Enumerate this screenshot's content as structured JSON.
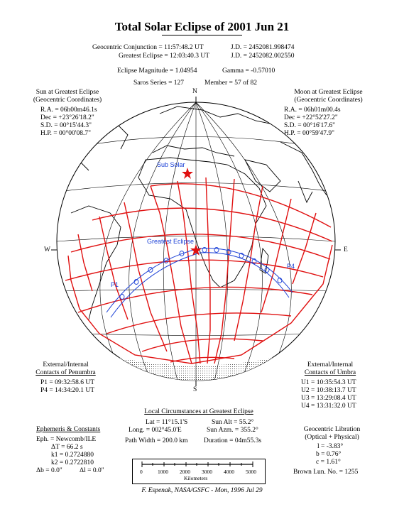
{
  "title": "Total Solar Eclipse of 2001 Jun 21",
  "header": {
    "conj": "Geocentric Conjunction = 11:57:48.2 UT",
    "conj_jd": "J.D. = 2452081.998474",
    "greatest": "Greatest Eclipse = 12:03:40.3 UT",
    "greatest_jd": "J.D. = 2452082.002550",
    "magnitude": "Eclipse Magnitude = 1.04954",
    "gamma": "Gamma = -0.57010",
    "saros": "Saros Series = 127",
    "member": "Member = 57 of 82"
  },
  "sun": {
    "heading1": "Sun at Greatest Eclipse",
    "heading2": "(Geocentric Coordinates)",
    "ra": "R.A. = 06h00m46.1s",
    "dec": "Dec = +23°26'18.2\"",
    "sd": "S.D. = 00°15'44.3\"",
    "hp": "H.P. = 00°00'08.7\""
  },
  "moon": {
    "heading1": "Moon at Greatest Eclipse",
    "heading2": "(Geocentric Coordinates)",
    "ra": "R.A. = 06h01m00.4s",
    "dec": "Dec = +22°52'27.2\"",
    "sd": "S.D. = 00°16'17.6\"",
    "hp": "H.P. = 00°59'47.9\""
  },
  "map": {
    "north": "N",
    "south": "S",
    "east": "E",
    "west": "W",
    "sub_solar": "Sub Solar",
    "greatest_eclipse": "Greatest Eclipse",
    "p1": "P1",
    "p4": "P4",
    "path_color": "#1a3fd6",
    "grid_color": "#e01010"
  },
  "penumbra": {
    "heading1": "External/Internal",
    "heading2": "Contacts of Penumbra",
    "p1": "P1 = 09:32:58.6 UT",
    "p4": "P4 = 14:34:20.1 UT"
  },
  "umbra": {
    "heading1": "External/Internal",
    "heading2": "Contacts of Umbra",
    "u1": "U1 = 10:35:54.3 UT",
    "u2": "U2 = 10:38:13.7 UT",
    "u3": "U3 = 13:29:08.4 UT",
    "u4": "U4 = 13:31:32.0 UT"
  },
  "local": {
    "heading": "Local Circumstances at Greatest Eclipse",
    "lat": "Lat = 11°15.1'S",
    "long": "Long. = 002°45.0'E",
    "sun_alt": "Sun Alt = 55.2°",
    "sun_azm": "Sun Azm. = 355.2°",
    "path_width": "Path Width = 200.0 km",
    "duration": "Duration = 04m55.3s"
  },
  "ephemeris": {
    "heading": "Ephemeris & Constants",
    "eph": "Eph. = Newcomb/ILE",
    "dt": "ΔT = 66.2 s",
    "k1": "k1 = 0.2724880",
    "k2": "k2 = 0.2722810",
    "db": "Δb = 0.0\"",
    "dl": "Δl = 0.0\""
  },
  "libration": {
    "heading1": "Geocentric Libration",
    "heading2": "(Optical + Physical)",
    "l": "l = -3.83°",
    "b": "b = 0.76°",
    "c": "c = 1.61°",
    "brown": "Brown Lun. No. = 1255"
  },
  "scale": {
    "ticks": [
      "0",
      "1000",
      "2000",
      "3000",
      "4000",
      "5000"
    ],
    "unit": "Kilometers"
  },
  "credit": "F. Espenak, NASA/GSFC - Mon, 1996 Jul 29"
}
